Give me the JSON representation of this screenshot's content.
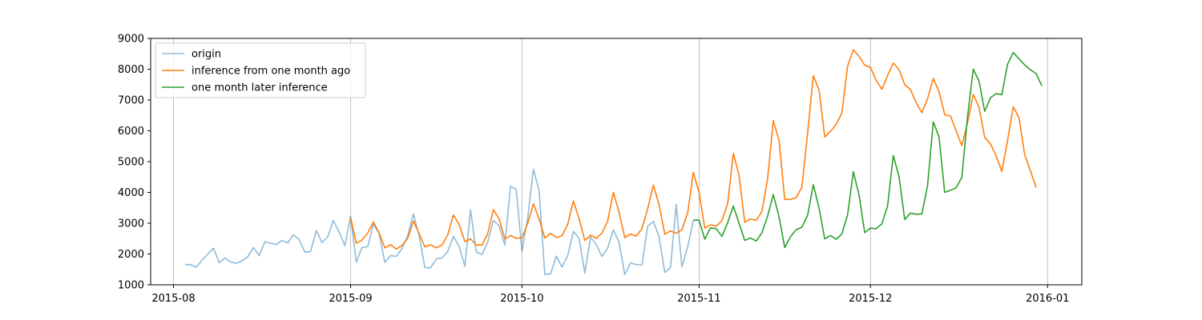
{
  "chart_data": {
    "type": "line",
    "title": "",
    "xlabel": "",
    "ylabel": "",
    "x_axis": {
      "type": "date",
      "range": [
        "2015-07-28",
        "2016-01-07"
      ],
      "ticks": [
        {
          "date": "2015-08-01",
          "label": "2015-08"
        },
        {
          "date": "2015-09-01",
          "label": "2015-09"
        },
        {
          "date": "2015-10-01",
          "label": "2015-10"
        },
        {
          "date": "2015-11-01",
          "label": "2015-11"
        },
        {
          "date": "2015-12-01",
          "label": "2015-12"
        },
        {
          "date": "2016-01-01",
          "label": "2016-01"
        }
      ],
      "grid": true
    },
    "y_axis": {
      "range": [
        1000,
        9000
      ],
      "ticks": [
        1000,
        2000,
        3000,
        4000,
        5000,
        6000,
        7000,
        8000,
        9000
      ],
      "grid": false
    },
    "legend": {
      "placement": "upper-left"
    },
    "series": [
      {
        "name": "origin",
        "color": "#1f77b4",
        "opacity": 0.5,
        "start_date": "2015-08-03",
        "values": [
          1660,
          1650,
          1570,
          1800,
          2000,
          2190,
          1720,
          1870,
          1740,
          1700,
          1780,
          1910,
          2210,
          1950,
          2400,
          2350,
          2310,
          2440,
          2360,
          2620,
          2470,
          2060,
          2080,
          2760,
          2370,
          2560,
          3090,
          2710,
          2270,
          3220,
          1730,
          2210,
          2240,
          2970,
          2660,
          1730,
          1950,
          1920,
          2180,
          2600,
          3300,
          2590,
          1560,
          1550,
          1840,
          1870,
          2080,
          2570,
          2250,
          1600,
          3430,
          2070,
          1980,
          2380,
          3090,
          2920,
          2290,
          4200,
          4090,
          2080,
          3170,
          4750,
          4060,
          1340,
          1350,
          1930,
          1580,
          1940,
          2730,
          2510,
          1380,
          2550,
          2310,
          1920,
          2190,
          2790,
          2380,
          1330,
          1710,
          1660,
          1640,
          2900,
          3060,
          2560,
          1400,
          1560,
          3610,
          1580,
          2220,
          3100
        ]
      },
      {
        "name": "inference from one month ago",
        "color": "#ff7f0e",
        "opacity": 1,
        "start_date": "2015-09-01",
        "values": [
          3180,
          2350,
          2450,
          2680,
          3040,
          2680,
          2200,
          2300,
          2160,
          2280,
          2510,
          3070,
          2660,
          2230,
          2300,
          2200,
          2290,
          2620,
          3270,
          2960,
          2400,
          2490,
          2290,
          2290,
          2660,
          3440,
          3140,
          2490,
          2600,
          2510,
          2520,
          2990,
          3630,
          3140,
          2520,
          2670,
          2540,
          2590,
          2960,
          3720,
          3150,
          2440,
          2610,
          2510,
          2680,
          3070,
          4000,
          3360,
          2530,
          2650,
          2580,
          2820,
          3470,
          4240,
          3600,
          2640,
          2750,
          2670,
          2790,
          3330,
          4650,
          4000,
          2840,
          2950,
          2900,
          3080,
          3630,
          5270,
          4550,
          3030,
          3140,
          3090,
          3380,
          4440,
          6330,
          5690,
          3770,
          3770,
          3830,
          4170,
          5920,
          7790,
          7330,
          5800,
          5980,
          6210,
          6570,
          8100,
          8630,
          8420,
          8130,
          8060,
          7640,
          7350,
          7790,
          8200,
          7990,
          7500,
          7340,
          6920,
          6590,
          7040,
          7700,
          7280,
          6520,
          6480,
          6000,
          5520,
          6260,
          7180,
          6770,
          5790,
          5580,
          5190,
          4680,
          5680,
          6780,
          6430,
          5230,
          4700,
          4160
        ]
      },
      {
        "name": "one month later inference",
        "color": "#2ca02c",
        "opacity": 1,
        "start_date": "2015-10-31",
        "values": [
          3100,
          3100,
          2480,
          2850,
          2820,
          2570,
          3010,
          3560,
          3000,
          2440,
          2520,
          2420,
          2690,
          3230,
          3930,
          3210,
          2210,
          2560,
          2790,
          2870,
          3250,
          4250,
          3500,
          2490,
          2600,
          2480,
          2650,
          3270,
          4670,
          3930,
          2690,
          2840,
          2820,
          2980,
          3560,
          5200,
          4520,
          3120,
          3330,
          3290,
          3300,
          4220,
          6290,
          5810,
          4000,
          4070,
          4150,
          4490,
          6460,
          8000,
          7620,
          6630,
          7070,
          7210,
          7170,
          8160,
          8540,
          8340,
          8140,
          7980,
          7860,
          7460
        ]
      }
    ]
  }
}
